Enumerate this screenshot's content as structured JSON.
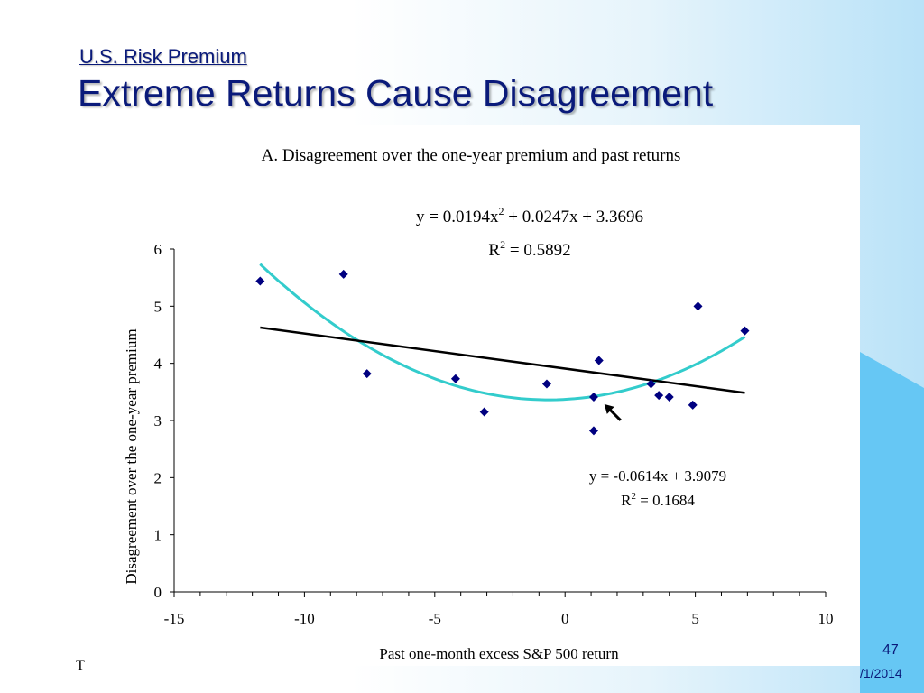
{
  "slide": {
    "subtitle": "U.S. Risk Premium",
    "title": "Extreme Returns Cause Disagreement",
    "slide_number": "47",
    "date_fragment": "/1/2014",
    "footer_fragment": "T",
    "colors": {
      "title": "#0a1a7a",
      "background_accent": "#66c7f4",
      "marker": "#000080",
      "quadratic_fit": "#33cccc",
      "linear_fit": "#000000"
    }
  },
  "chart_data": {
    "type": "scatter",
    "title": "A. Disagreement over the one-year premium and past returns",
    "xlabel": "Past one-month excess S&P 500 return",
    "ylabel": "Disagreement over the one-year premium",
    "xlim": [
      -15,
      10
    ],
    "ylim": [
      0,
      6
    ],
    "x_ticks": [
      -15,
      -10,
      -5,
      0,
      5,
      10
    ],
    "y_ticks": [
      0,
      1,
      2,
      3,
      4,
      5,
      6
    ],
    "grid": false,
    "legend": "none",
    "points": [
      {
        "x": -11.7,
        "y": 5.44
      },
      {
        "x": -8.5,
        "y": 5.56
      },
      {
        "x": -7.6,
        "y": 3.82
      },
      {
        "x": -4.2,
        "y": 3.73
      },
      {
        "x": -3.1,
        "y": 3.15
      },
      {
        "x": -0.7,
        "y": 3.64
      },
      {
        "x": 1.1,
        "y": 2.82
      },
      {
        "x": 1.1,
        "y": 3.41
      },
      {
        "x": 1.3,
        "y": 4.05
      },
      {
        "x": 3.3,
        "y": 3.64
      },
      {
        "x": 3.6,
        "y": 3.44
      },
      {
        "x": 4.0,
        "y": 3.41
      },
      {
        "x": 4.9,
        "y": 3.27
      },
      {
        "x": 5.1,
        "y": 5.0
      },
      {
        "x": 6.9,
        "y": 4.57
      }
    ],
    "fits": {
      "linear": {
        "slope": -0.0614,
        "intercept": 3.9079,
        "x_range": [
          -11.7,
          6.9
        ],
        "equation": "y = -0.0614x + 3.9079",
        "r2_label": "R",
        "r2_sup": "2",
        "r2_value": " = 0.1684"
      },
      "quadratic": {
        "a": 0.0194,
        "b": 0.0247,
        "c": 3.3696,
        "x_range": [
          -11.7,
          6.9
        ],
        "eq_prefix": "y = 0.0194x",
        "eq_sup": "2",
        "eq_suffix": " + 0.0247x + 3.3696",
        "r2_label": "R",
        "r2_sup": "2",
        "r2_value": " = 0.5892"
      }
    },
    "annotation": {
      "type": "arrow",
      "points_to": {
        "x": 1.3,
        "y": 3.35
      }
    }
  }
}
